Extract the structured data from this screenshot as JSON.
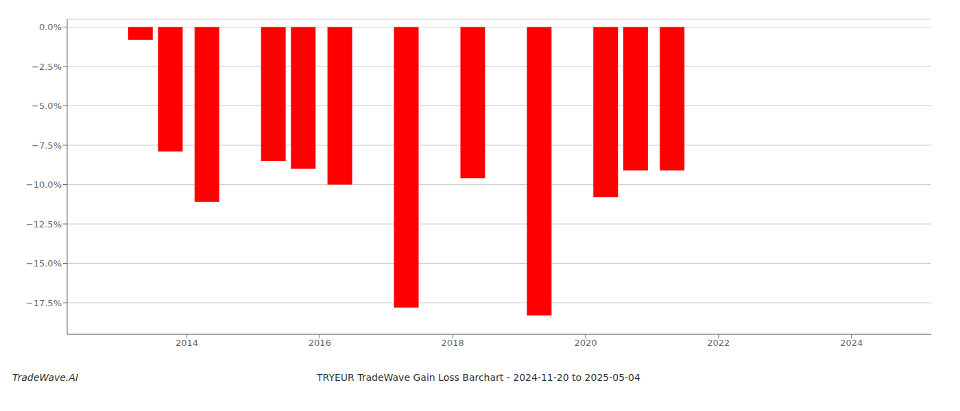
{
  "chart_data": {
    "type": "bar",
    "title": "TRYEUR TradeWave Gain Loss Barchart - 2024-11-20 to 2025-05-04",
    "annotations": [
      "TradeWave.AI"
    ],
    "x": [
      2013.3,
      2013.75,
      2014.3,
      2015.3,
      2015.75,
      2016.3,
      2017.3,
      2018.3,
      2019.3,
      2020.3,
      2020.75,
      2021.3,
      2022.3,
      2022.75,
      2023.3,
      2024.3
    ],
    "values": [
      -0.008,
      -0.079,
      -0.111,
      -0.085,
      -0.09,
      -0.1,
      -0.178,
      -0.096,
      -0.183,
      -0.108,
      -0.091,
      -0.091,
      -0.0,
      -0.0,
      -0.0,
      -0.0
    ],
    "color": "#ff0000",
    "xlim": [
      2012.2,
      2025.2
    ],
    "xticks": [
      2014,
      2016,
      2018,
      2020,
      2022,
      2024
    ],
    "ylim": [
      -0.195,
      0.005
    ],
    "yticks": [
      {
        "value": 0.0,
        "label": "0.0%"
      },
      {
        "value": -0.025,
        "label": "−2.5%"
      },
      {
        "value": -0.05,
        "label": "−5.0%"
      },
      {
        "value": -0.075,
        "label": "−7.5%"
      },
      {
        "value": -0.1,
        "label": "−10.0%"
      },
      {
        "value": -0.125,
        "label": "−12.5%"
      },
      {
        "value": -0.15,
        "label": "−15.0%"
      },
      {
        "value": -0.175,
        "label": "−17.5%"
      }
    ],
    "grid": true
  }
}
